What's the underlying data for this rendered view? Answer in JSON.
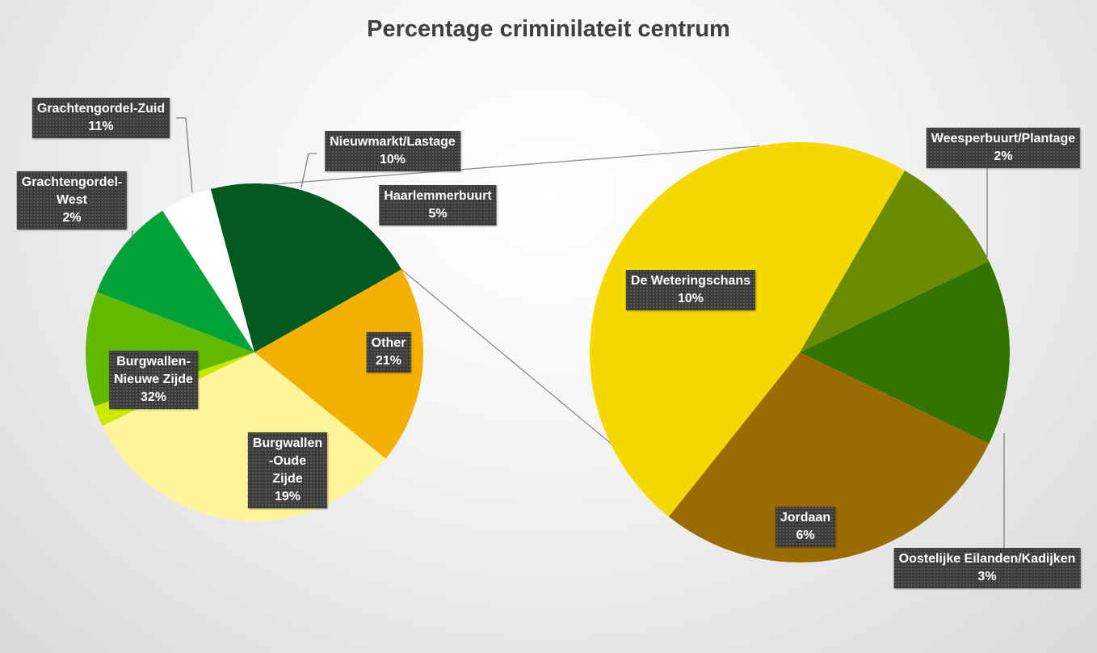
{
  "chart_data": {
    "type": "pie",
    "subtype": "pie-of-pie",
    "title": "Percentage criminilateit centrum",
    "primary": {
      "slices": [
        {
          "label": "Haarlemmerbuurt",
          "value": 5,
          "value_label": "5%",
          "color": "#ffffff"
        },
        {
          "label": "Other",
          "value": 21,
          "value_label": "21%",
          "color": "#005a1f"
        },
        {
          "label": "Burgwallen\n-Oude\nZijde",
          "value": 19,
          "value_label": "19%",
          "color": "#f4b000"
        },
        {
          "label": "Burgwallen-\nNieuwe Zijde",
          "value": 32,
          "value_label": "32%",
          "color": "#fff59a"
        },
        {
          "label": "Grachtengordel-\nWest",
          "value": 2,
          "value_label": "2%",
          "color": "#cbe800"
        },
        {
          "label": "Grachtengordel-Zuid",
          "value": 11,
          "value_label": "11%",
          "color": "#5fba00"
        },
        {
          "label": "Nieuwmarkt/Lastage",
          "value": 10,
          "value_label": "10%",
          "color": "#00a23a"
        }
      ]
    },
    "secondary": {
      "slices": [
        {
          "label": "Weesperbuurt/Plantage",
          "value": 2,
          "value_label": "2%",
          "color": "#6b8c00"
        },
        {
          "label": "Oostelijke Eilanden/Kadijken",
          "value": 3,
          "value_label": "3%",
          "color": "#337300"
        },
        {
          "label": "Jordaan",
          "value": 6,
          "value_label": "6%",
          "color": "#9a6b00"
        },
        {
          "label": "De Weteringschans",
          "value": 10,
          "value_label": "10%",
          "color": "#f5d800"
        }
      ]
    }
  }
}
